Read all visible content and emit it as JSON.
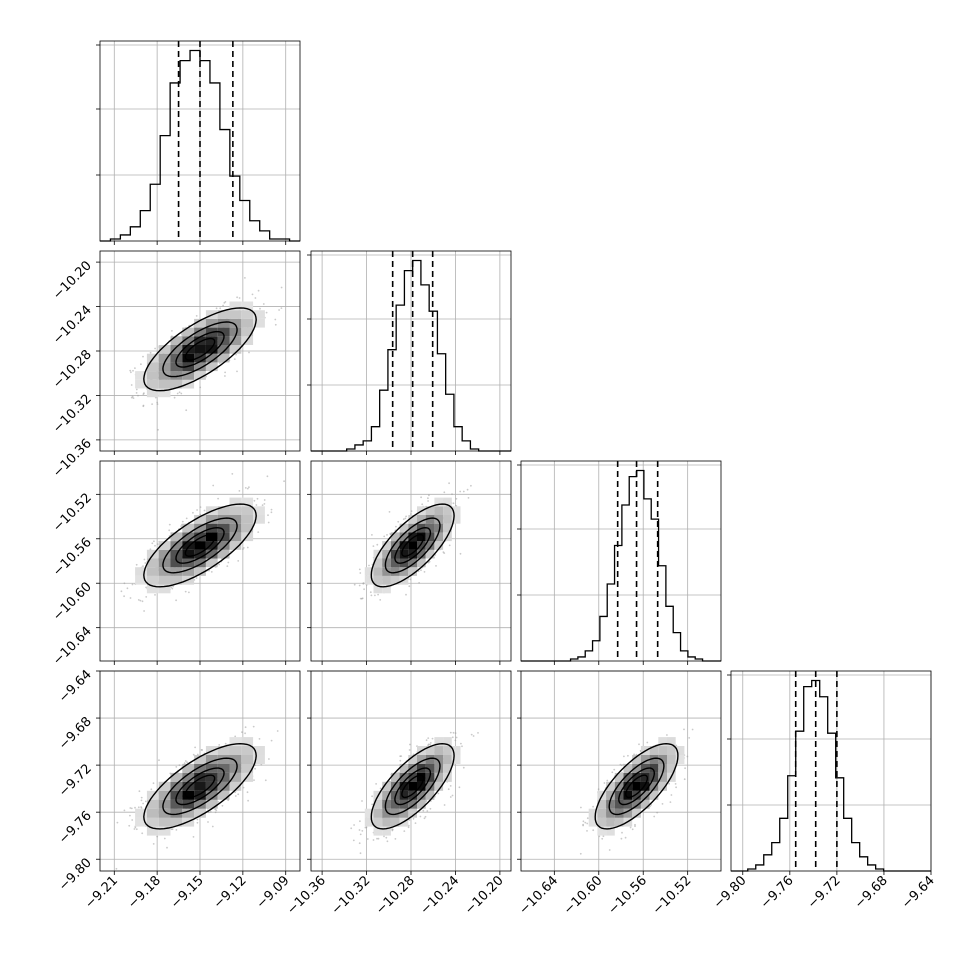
{
  "chart_data": {
    "type": "corner",
    "grid": true,
    "parameters": [
      {
        "range": [
          -9.22,
          -9.08
        ],
        "ticks": [
          -9.21,
          -9.18,
          -9.15,
          -9.12,
          -9.09
        ],
        "tick_labels": [
          "−9.21",
          "−9.18",
          "−9.15",
          "−9.12",
          "−9.09"
        ],
        "quantiles": [
          -9.165,
          -9.15,
          -9.127
        ],
        "hist_counts": [
          1,
          3,
          7,
          15,
          28,
          52,
          78,
          89,
          94,
          89,
          78,
          55,
          32,
          20,
          10,
          5,
          1,
          1
        ]
      },
      {
        "range": [
          -10.37,
          -10.19
        ],
        "ticks": [
          -10.36,
          -10.32,
          -10.28,
          -10.24,
          -10.2
        ],
        "tick_labels": [
          "−10.36",
          "−10.32",
          "−10.28",
          "−10.24",
          "−10.20"
        ],
        "quantiles": [
          -10.2965,
          -10.2785,
          -10.2605
        ],
        "hist_counts": [
          1,
          3,
          5,
          12,
          30,
          50,
          72,
          89,
          94,
          82,
          69,
          48,
          28,
          12,
          5,
          1
        ]
      },
      {
        "range": [
          -10.67,
          -10.49
        ],
        "ticks": [
          -10.64,
          -10.6,
          -10.56,
          -10.52
        ],
        "tick_labels": [
          "−10.64",
          "−10.60",
          "−10.56",
          "−10.52"
        ],
        "quantiles": [
          -10.583,
          -10.566,
          -10.547
        ],
        "hist_counts": [
          1,
          2,
          5,
          10,
          22,
          38,
          57,
          77,
          91,
          94,
          80,
          70,
          47,
          27,
          14,
          5,
          2,
          1
        ]
      },
      {
        "range": [
          -9.81,
          -9.64
        ],
        "ticks": [
          -9.8,
          -9.76,
          -9.72,
          -9.68,
          -9.64
        ],
        "tick_labels": [
          "−9.80",
          "−9.76",
          "−9.72",
          "−9.68",
          "−9.64"
        ],
        "quantiles": [
          -9.755,
          -9.738,
          -9.72
        ],
        "hist_counts": [
          1,
          3,
          8,
          14,
          26,
          47,
          69,
          91,
          94,
          86,
          68,
          46,
          26,
          14,
          7,
          3,
          1
        ]
      }
    ],
    "correlation": 0.72,
    "contour_levels_sigma": [
      0.5,
      1.0,
      1.5,
      2.0
    ],
    "left_axis_rows": [
      1,
      2,
      3
    ]
  }
}
